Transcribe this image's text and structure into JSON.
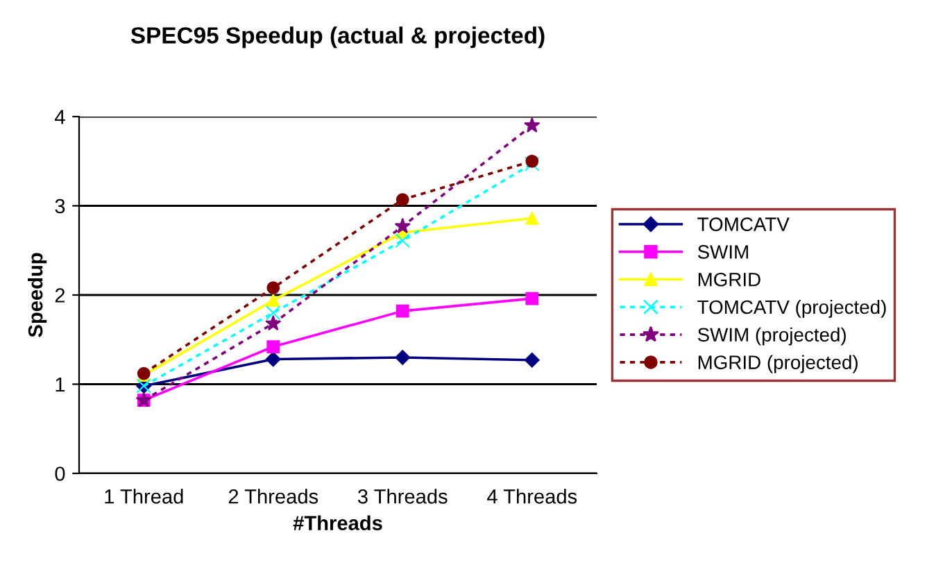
{
  "chart_data": {
    "type": "line",
    "title": "SPEC95 Speedup (actual & projected)",
    "xlabel": "#Threads",
    "ylabel": "Speedup",
    "categories": [
      "1 Thread",
      "2 Threads",
      "3 Threads",
      "4 Threads"
    ],
    "series": [
      {
        "name": "TOMCATV",
        "color": "#000080",
        "marker": "diamond",
        "line_style": "solid",
        "values": [
          0.98,
          1.28,
          1.3,
          1.27
        ]
      },
      {
        "name": "SWIM",
        "color": "#ff00ff",
        "marker": "square",
        "line_style": "solid",
        "values": [
          0.82,
          1.42,
          1.82,
          1.96
        ]
      },
      {
        "name": "MGRID",
        "color": "#ffff00",
        "marker": "triangle",
        "line_style": "solid",
        "values": [
          1.1,
          1.94,
          2.7,
          2.86
        ]
      },
      {
        "name": "TOMCATV (projected)",
        "color": "#00ffff",
        "marker": "cross",
        "line_style": "dotted",
        "values": [
          0.98,
          1.8,
          2.61,
          3.47
        ]
      },
      {
        "name": "SWIM (projected)",
        "color": "#800080",
        "marker": "star",
        "line_style": "dotted",
        "values": [
          0.82,
          1.68,
          2.77,
          3.9
        ]
      },
      {
        "name": "MGRID (projected)",
        "color": "#800000",
        "marker": "circle",
        "line_style": "dotted",
        "values": [
          1.12,
          2.08,
          3.07,
          3.5
        ]
      }
    ],
    "ylim": [
      0,
      4
    ],
    "yticks": [
      0,
      1,
      2,
      3,
      4
    ],
    "grid": "y",
    "legend": "right"
  }
}
